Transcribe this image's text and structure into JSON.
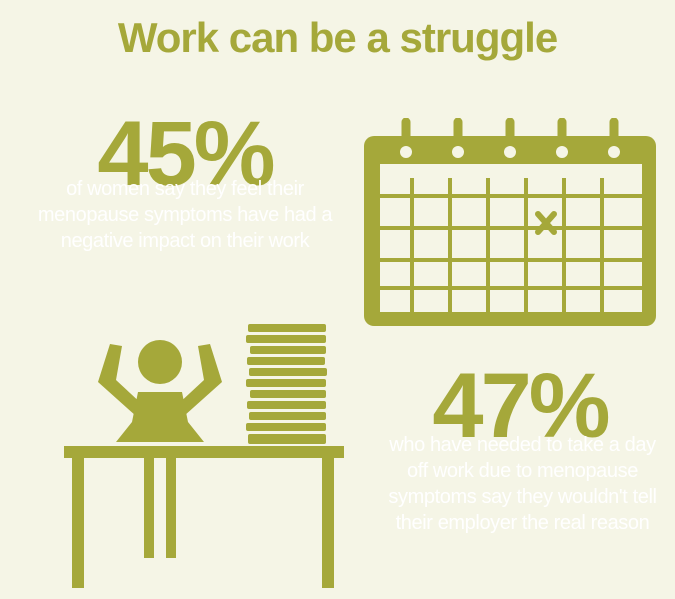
{
  "title": "Work can be a struggle",
  "stat1": {
    "value": "45%",
    "description": "of women say they feel their menopause symptoms have had a negative impact on their work"
  },
  "stat2": {
    "value": "47%",
    "description": "who have needed to take a day off work due to menopause symptoms say they wouldn't tell their employer the real reason"
  },
  "colors": {
    "accent": "#a5a83a",
    "background": "#f5f5e6",
    "text": "#ffffff"
  },
  "icons": [
    "calendar-icon",
    "woman-at-desk-icon",
    "paper-stack-icon"
  ]
}
